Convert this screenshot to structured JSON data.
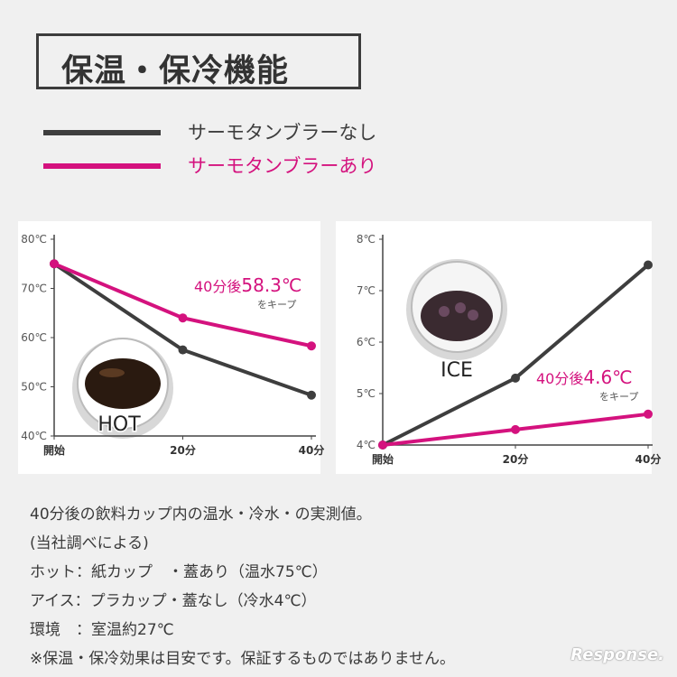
{
  "title": "保温・保冷機能",
  "legend": [
    {
      "label": "サーモタンブラーなし",
      "color": "#3e3e3e"
    },
    {
      "label": "サーモタンブラーあり",
      "color": "#d4127e"
    }
  ],
  "chart_data": [
    {
      "type": "line",
      "x": [
        "開始",
        "20分",
        "40分"
      ],
      "y_ticks": [
        "80℃",
        "70℃",
        "60℃",
        "50℃",
        "40℃"
      ],
      "ylim": [
        40,
        80
      ],
      "series": [
        {
          "name": "サーモタンブラーなし",
          "values": [
            75,
            57.5,
            48.3
          ],
          "color": "#3e3e3e"
        },
        {
          "name": "サーモタンブラーあり",
          "values": [
            75,
            64,
            58.3
          ],
          "color": "#d4127e"
        }
      ],
      "annotation": {
        "prefix": "40分後",
        "value": "58.3℃",
        "suffix": "をキープ"
      },
      "photo_label": "HOT"
    },
    {
      "type": "line",
      "x": [
        "開始",
        "20分",
        "40分"
      ],
      "y_ticks": [
        "8℃",
        "7℃",
        "6℃",
        "5℃",
        "4℃"
      ],
      "ylim": [
        4,
        8
      ],
      "series": [
        {
          "name": "サーモタンブラーなし",
          "values": [
            4,
            5.3,
            7.5
          ],
          "color": "#3e3e3e"
        },
        {
          "name": "サーモタンブラーあり",
          "values": [
            4,
            4.3,
            4.6
          ],
          "color": "#d4127e"
        }
      ],
      "annotation": {
        "prefix": "40分後",
        "value": "4.6℃",
        "suffix": "をキープ"
      },
      "photo_label": "ICE"
    }
  ],
  "notes": [
    "40分後の飲料カップ内の温水・冷水・の実測値。",
    "(当社調べによる)",
    "ホット：紙カップ　・蓋あり（温水75℃）",
    "アイス：プラカップ・蓋なし（冷水4℃）",
    "環境　：室温約27℃",
    "※保温・保冷効果は目安です。保証するものではありません。"
  ],
  "watermark": "Response."
}
